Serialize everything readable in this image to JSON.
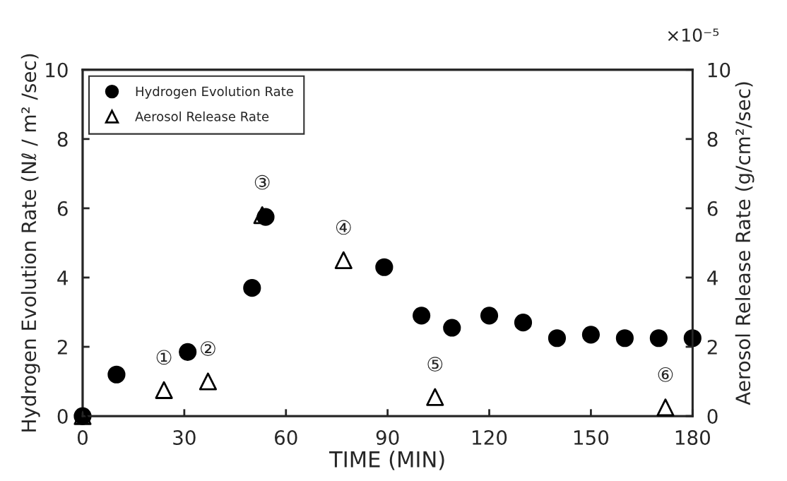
{
  "chart_data": {
    "type": "scatter",
    "xlabel": "TIME (MIN)",
    "ylabel": "Hydrogen Evolution Rate (Nℓ / m² /sec)",
    "y2label": "Aerosol Release Rate (g/cm²/sec)",
    "xlim": [
      0,
      180
    ],
    "xticks": [
      0,
      30,
      60,
      90,
      120,
      150,
      180
    ],
    "ylim": [
      0,
      10
    ],
    "yticks": [
      0,
      2,
      4,
      6,
      8,
      10
    ],
    "y2lim": [
      0,
      10
    ],
    "y2ticks": [
      0,
      2,
      4,
      6,
      8,
      10
    ],
    "legend": "top left",
    "grid": false,
    "series": [
      {
        "name": "Hydrogen Evolution Rate",
        "color": "#000000",
        "marker": "circle",
        "x": [
          0,
          10,
          31,
          50,
          54,
          89,
          100,
          109,
          120,
          130,
          140,
          150,
          160,
          170,
          180
        ],
        "values": [
          0,
          1.2,
          1.85,
          3.7,
          5.75,
          4.3,
          2.9,
          2.55,
          2.9,
          2.7,
          2.25,
          2.35,
          2.25,
          2.25,
          2.25
        ]
      },
      {
        "name": "Aerosol Release Rate",
        "color": "#000000",
        "marker": "triangle",
        "axis": "y2",
        "x": [
          0,
          24,
          37,
          53,
          77,
          104,
          172
        ],
        "values": [
          0,
          0.75,
          1.0,
          5.8,
          4.5,
          0.55,
          0.25
        ]
      }
    ],
    "annotations": [
      {
        "text": "①",
        "x": 24,
        "y": 0.75
      },
      {
        "text": "②",
        "x": 37,
        "y": 1.0
      },
      {
        "text": "③",
        "x": 53,
        "y": 5.8
      },
      {
        "text": "④",
        "x": 77,
        "y": 4.5
      },
      {
        "text": "⑤",
        "x": 104,
        "y": 0.55
      },
      {
        "text": "⑥",
        "x": 172,
        "y": 0.25
      },
      "×10⁻⁵"
    ]
  }
}
